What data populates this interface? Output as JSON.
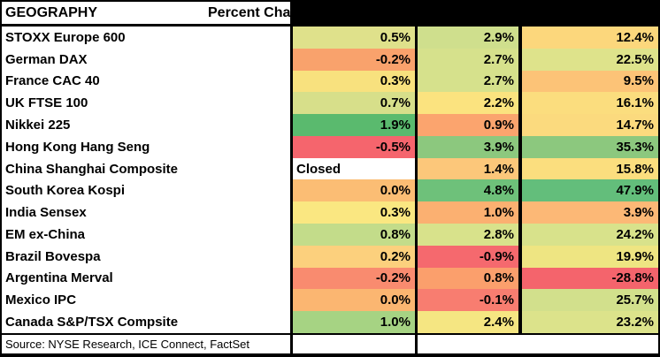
{
  "header": {
    "geography_label": "GEOGRAPHY",
    "percent_change_label": "Percent Cha"
  },
  "rows": [
    {
      "label": "STOXX Europe 600",
      "cells": [
        {
          "text": "0.5%",
          "bg": "#dfe18b"
        },
        {
          "text": "2.9%",
          "bg": "#cfdf8d"
        },
        {
          "text": "12.4%",
          "bg": "#fcd77c"
        }
      ]
    },
    {
      "label": "German DAX",
      "cells": [
        {
          "text": "-0.2%",
          "bg": "#f9a26c"
        },
        {
          "text": "2.7%",
          "bg": "#d6e18c"
        },
        {
          "text": "22.5%",
          "bg": "#dee38b"
        }
      ]
    },
    {
      "label": "France CAC 40",
      "cells": [
        {
          "text": "0.3%",
          "bg": "#f8e17e"
        },
        {
          "text": "2.7%",
          "bg": "#d6e18c"
        },
        {
          "text": "9.5%",
          "bg": "#fcc377"
        }
      ]
    },
    {
      "label": "UK FTSE 100",
      "cells": [
        {
          "text": "0.7%",
          "bg": "#d7df8a"
        },
        {
          "text": "2.2%",
          "bg": "#fbe37f"
        },
        {
          "text": "16.1%",
          "bg": "#fbdd7e"
        }
      ]
    },
    {
      "label": "Nikkei 225",
      "cells": [
        {
          "text": "1.9%",
          "bg": "#5aba6e"
        },
        {
          "text": "0.9%",
          "bg": "#fba46e"
        },
        {
          "text": "14.7%",
          "bg": "#fbda7e"
        }
      ]
    },
    {
      "label": "Hong Kong Hang Seng",
      "cells": [
        {
          "text": "-0.5%",
          "bg": "#f5656d"
        },
        {
          "text": "3.9%",
          "bg": "#8cc87e"
        },
        {
          "text": "35.3%",
          "bg": "#8cc87e"
        }
      ]
    },
    {
      "label": "China Shanghai Composite",
      "cells": [
        {
          "text": "Closed",
          "bg": "#ffffff",
          "align": "left"
        },
        {
          "text": "1.4%",
          "bg": "#fcc77a"
        },
        {
          "text": "15.8%",
          "bg": "#fbde7e"
        }
      ]
    },
    {
      "label": "South Korea Kospi",
      "cells": [
        {
          "text": "0.0%",
          "bg": "#fbbd74"
        },
        {
          "text": "4.8%",
          "bg": "#6ec17a"
        },
        {
          "text": "47.9%",
          "bg": "#63be7b"
        }
      ]
    },
    {
      "label": "India Sensex",
      "cells": [
        {
          "text": "0.3%",
          "bg": "#fae781"
        },
        {
          "text": "1.0%",
          "bg": "#fbb071"
        },
        {
          "text": "3.9%",
          "bg": "#fcb876"
        }
      ]
    },
    {
      "label": "EM ex-China",
      "cells": [
        {
          "text": "0.8%",
          "bg": "#c3dc8a"
        },
        {
          "text": "2.8%",
          "bg": "#d8e28b"
        },
        {
          "text": "24.2%",
          "bg": "#d8e28b"
        }
      ]
    },
    {
      "label": "Brazil Bovespa",
      "cells": [
        {
          "text": "0.2%",
          "bg": "#fcd07d"
        },
        {
          "text": "-0.9%",
          "bg": "#f5696e"
        },
        {
          "text": "19.9%",
          "bg": "#eee582"
        }
      ]
    },
    {
      "label": "Argentina Merval",
      "cells": [
        {
          "text": "-0.2%",
          "bg": "#f98b6f"
        },
        {
          "text": "0.8%",
          "bg": "#fb9f6c"
        },
        {
          "text": "-28.8%",
          "bg": "#f4646c"
        }
      ]
    },
    {
      "label": "Mexico IPC",
      "cells": [
        {
          "text": "0.0%",
          "bg": "#fbb671"
        },
        {
          "text": "-0.1%",
          "bg": "#f87d70"
        },
        {
          "text": "25.7%",
          "bg": "#d2e08c"
        }
      ]
    },
    {
      "label": "Canada S&P/TSX Compsite",
      "cells": [
        {
          "text": "1.0%",
          "bg": "#a6d383"
        },
        {
          "text": "2.4%",
          "bg": "#f5e682"
        },
        {
          "text": "23.2%",
          "bg": "#dce38b"
        }
      ]
    }
  ],
  "footer": {
    "source_text": "Source: NYSE Research, ICE Connect, FactSet"
  },
  "colors": {
    "border": "#000000",
    "cell_text": "#000000",
    "scale_low": "#f8696b",
    "scale_mid": "#ffeb84",
    "scale_high": "#63be7b"
  },
  "chart_data": {
    "type": "table",
    "title": "GEOGRAPHY — Percent Cha (column header labels obscured by black box)",
    "categories": [
      "STOXX Europe 600",
      "German DAX",
      "France CAC 40",
      "UK FTSE 100",
      "Nikkei 225",
      "Hong Kong Hang Seng",
      "China Shanghai Composite",
      "South Korea Kospi",
      "India Sensex",
      "EM ex-China",
      "Brazil Bovespa",
      "Argentina Merval",
      "Mexico IPC",
      "Canada S&P/TSX Compsite"
    ],
    "series": [
      {
        "name": "column_1",
        "values": [
          0.5,
          -0.2,
          0.3,
          0.7,
          1.9,
          -0.5,
          null,
          0.0,
          0.3,
          0.8,
          0.2,
          -0.2,
          0.0,
          1.0
        ]
      },
      {
        "name": "column_2",
        "values": [
          2.9,
          2.7,
          2.7,
          2.2,
          0.9,
          3.9,
          1.4,
          4.8,
          1.0,
          2.8,
          -0.9,
          0.8,
          -0.1,
          2.4
        ]
      },
      {
        "name": "column_3",
        "values": [
          12.4,
          22.5,
          9.5,
          16.1,
          14.7,
          35.3,
          15.8,
          47.9,
          3.9,
          24.2,
          19.9,
          -28.8,
          25.7,
          23.2
        ]
      }
    ],
    "annotations": [
      "China Shanghai Composite column_1 shows text 'Closed'"
    ],
    "units": "percent",
    "legend_position": "none",
    "style": "red-yellow-green conditional-format heatmap cells, values right-aligned, bold"
  }
}
